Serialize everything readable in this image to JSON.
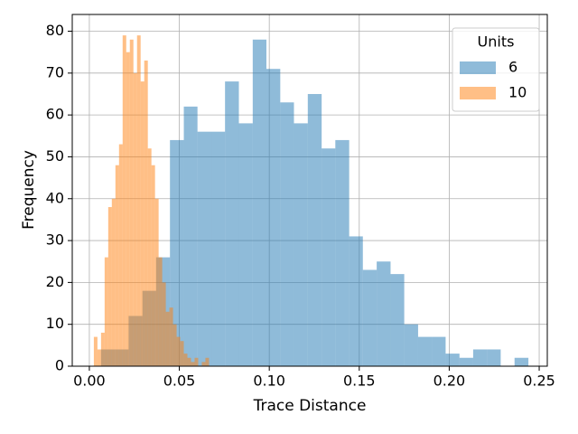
{
  "chart_data": {
    "type": "histogram",
    "xlabel": "Trace Distance",
    "ylabel": "Frequency",
    "xlim": [
      -0.0095,
      0.2545
    ],
    "ylim": [
      0,
      84
    ],
    "xticks": [
      {
        "value": 0,
        "label": "0.00"
      },
      0.05,
      {
        "value": 0.1,
        "label": "0.10"
      },
      0.15,
      {
        "value": 0.2,
        "label": "0.20"
      },
      0.25
    ],
    "yticks": [
      0,
      10,
      20,
      30,
      40,
      50,
      60,
      70,
      80
    ],
    "grid": true,
    "legend_title": "Units",
    "legend_position": "upper right",
    "opacity": 0.5,
    "series": [
      {
        "name": "6",
        "color": "#1f77b4",
        "bins": [
          0.0065,
          0.0142,
          0.0218,
          0.0295,
          0.0371,
          0.0448,
          0.0525,
          0.0601,
          0.0678,
          0.0754,
          0.0831,
          0.0908,
          0.0984,
          0.1061,
          0.1137,
          0.1214,
          0.1291,
          0.1367,
          0.1444,
          0.152,
          0.1597,
          0.1674,
          0.175,
          0.1827,
          0.1903,
          0.198,
          0.2057,
          0.2133,
          0.221,
          0.2286,
          0.2363,
          0.244
        ],
        "values": [
          4,
          4,
          12,
          18,
          26,
          54,
          62,
          56,
          56,
          68,
          58,
          78,
          71,
          63,
          58,
          65,
          52,
          54,
          31,
          23,
          25,
          22,
          10,
          7,
          7,
          3,
          2,
          4,
          4,
          0,
          2
        ]
      },
      {
        "name": "10",
        "color": "#ff7f0e",
        "bins": [
          0.0025,
          0.0045,
          0.0065,
          0.0085,
          0.0105,
          0.0125,
          0.0145,
          0.0165,
          0.0185,
          0.0205,
          0.0225,
          0.0245,
          0.0265,
          0.0285,
          0.0305,
          0.0325,
          0.0345,
          0.0365,
          0.0385,
          0.0405,
          0.0425,
          0.0445,
          0.0465,
          0.0485,
          0.0505,
          0.0525,
          0.0545,
          0.0565,
          0.0585,
          0.0605,
          0.0625,
          0.0645,
          0.0665
        ],
        "values": [
          7,
          4,
          8,
          26,
          38,
          40,
          48,
          53,
          79,
          75,
          78,
          70,
          79,
          68,
          73,
          52,
          48,
          40,
          26,
          20,
          13,
          14,
          10,
          7,
          6,
          3,
          2,
          1,
          2,
          0,
          1,
          2
        ]
      }
    ]
  }
}
